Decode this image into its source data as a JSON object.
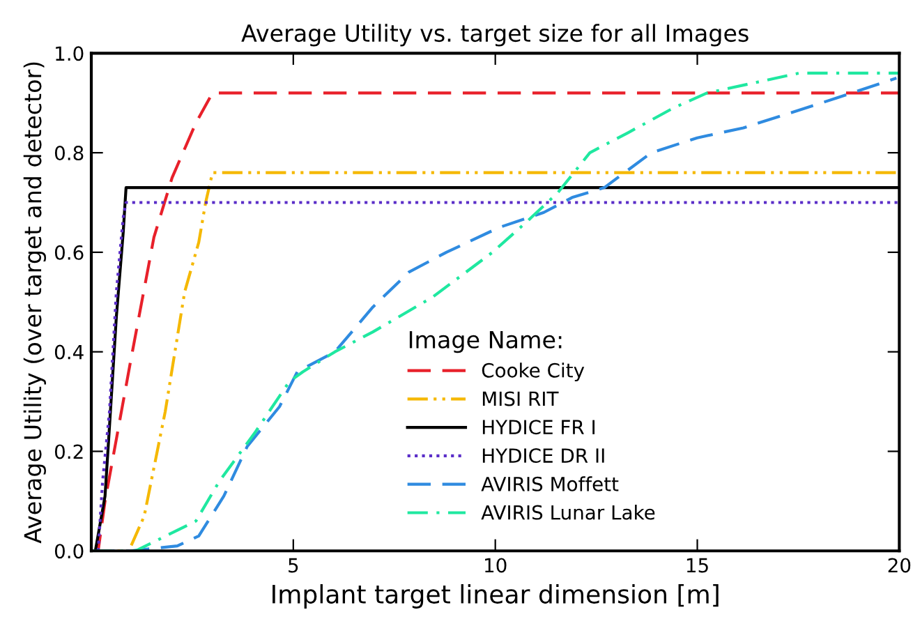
{
  "chart_data": {
    "type": "line",
    "title": "Average Utility vs. target size for all Images",
    "xlabel": "Implant target linear dimension [m]",
    "ylabel": "Average Utility (over target and detector)",
    "legend_title": "Image Name:",
    "legend": "lower right",
    "grid": false,
    "xlim": [
      0,
      20
    ],
    "xticks": [
      5,
      10,
      15,
      20
    ],
    "ylim": [
      0,
      1
    ],
    "yticks": [
      {
        "value": 0,
        "label": "0.0"
      },
      {
        "value": 0.2,
        "label": "0.2"
      },
      {
        "value": 0.4,
        "label": "0.4"
      },
      {
        "value": 0.6,
        "label": "0.6"
      },
      {
        "value": 0.8,
        "label": "0.8"
      },
      {
        "value": 1,
        "label": "1.0"
      }
    ],
    "series": [
      {
        "name": "Cooke City",
        "color": "#e8202a",
        "line_style": "dashed",
        "x": [
          0,
          0.17,
          0.34,
          0.97,
          1.55,
          2.0,
          2.59,
          3.0,
          20
        ],
        "values": [
          0,
          0,
          0.1,
          0.38,
          0.63,
          0.75,
          0.86,
          0.92,
          0.92
        ]
      },
      {
        "name": "MISI RIT",
        "color": "#f5b800",
        "line_style": "dashdotdot",
        "x": [
          0,
          0.93,
          1.31,
          1.83,
          2.31,
          2.66,
          2.83,
          3.0,
          20
        ],
        "values": [
          0,
          0,
          0.07,
          0.28,
          0.52,
          0.62,
          0.7,
          0.76,
          0.76
        ]
      },
      {
        "name": "HYDICE FR I",
        "color": "#000000",
        "line_style": "solid",
        "x": [
          0.1,
          0.34,
          0.45,
          0.62,
          0.79,
          0.86,
          20
        ],
        "values": [
          0,
          0.11,
          0.25,
          0.47,
          0.64,
          0.73,
          0.73
        ]
      },
      {
        "name": "HYDICE DR II",
        "color": "#5a2dc8",
        "line_style": "dotted",
        "x": [
          0.17,
          0.28,
          0.45,
          0.62,
          0.79,
          0.86,
          20
        ],
        "values": [
          0,
          0.14,
          0.28,
          0.52,
          0.67,
          0.7,
          0.7
        ]
      },
      {
        "name": "AVIRIS Moffett",
        "color": "#2f8be0",
        "line_style": "dashed",
        "x": [
          0,
          0.97,
          2.13,
          2.66,
          3.28,
          3.86,
          4.66,
          5.1,
          6.03,
          6.97,
          7.86,
          8.79,
          10.1,
          11.2,
          11.9,
          12.7,
          13.86,
          15.0,
          16.14,
          17.3,
          18.45,
          19.93
        ],
        "values": [
          0,
          0,
          0.01,
          0.03,
          0.11,
          0.21,
          0.29,
          0.36,
          0.4,
          0.49,
          0.56,
          0.6,
          0.65,
          0.68,
          0.71,
          0.73,
          0.8,
          0.83,
          0.85,
          0.88,
          0.91,
          0.95
        ]
      },
      {
        "name": "AVIRIS Lunar Lake",
        "color": "#1fe8a0",
        "line_style": "dashdot",
        "x": [
          0,
          1.1,
          2.59,
          3.17,
          4.07,
          4.9,
          5.24,
          6.03,
          6.97,
          8.45,
          9.93,
          10.76,
          11.55,
          12.34,
          13.28,
          14.41,
          15.24,
          16.38,
          17.52,
          20
        ],
        "values": [
          0,
          0,
          0.06,
          0.14,
          0.24,
          0.34,
          0.36,
          0.4,
          0.44,
          0.51,
          0.6,
          0.66,
          0.72,
          0.8,
          0.84,
          0.89,
          0.92,
          0.94,
          0.96,
          0.96
        ]
      }
    ]
  }
}
